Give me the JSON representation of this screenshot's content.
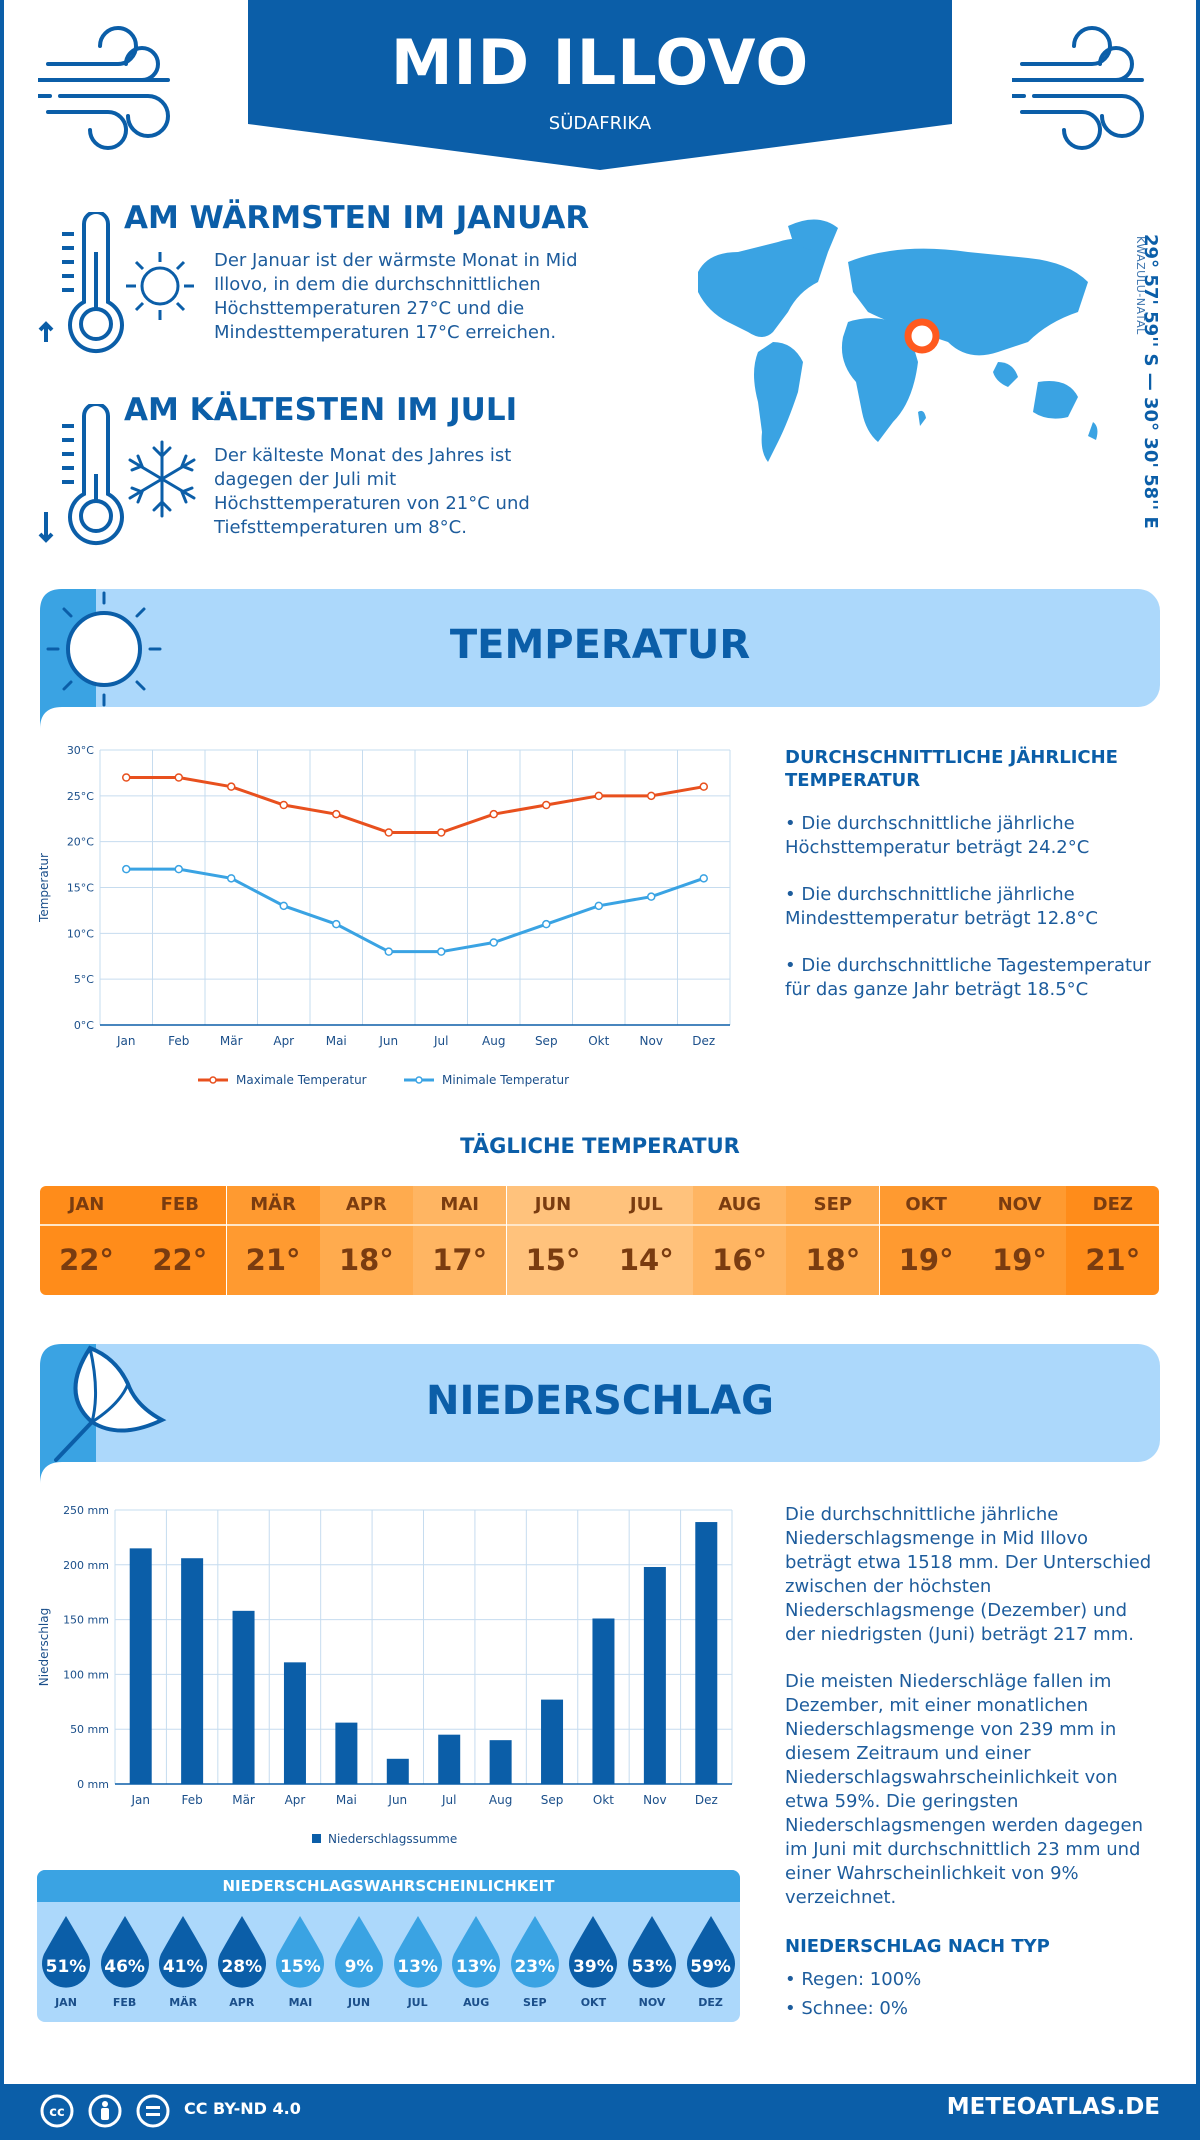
{
  "header": {
    "title": "MID ILLOVO",
    "subtitle": "SÜDAFRIKA"
  },
  "location": {
    "coordinates": "29° 57' 59'' S — 30° 30' 58'' E",
    "region": "KWAZULU-NATAL"
  },
  "warmest": {
    "title": "AM WÄRMSTEN IM JANUAR",
    "text": "Der Januar ist der wärmste Monat in Mid Illovo, in dem die durchschnittlichen Höchsttemperaturen 27°C und die Mindesttemperaturen 17°C erreichen."
  },
  "coldest": {
    "title": "AM KÄLTESTEN IM JULI",
    "text": "Der kälteste Monat des Jahres ist dagegen der Juli mit Höchsttemperaturen von 21°C und Tiefsttemperaturen um 8°C."
  },
  "temperature": {
    "section_title": "TEMPERATUR",
    "side_title": "DURCHSCHNITTLICHE JÄHRLICHE TEMPERATUR",
    "bullets": [
      "• Die durchschnittliche jährliche Höchsttemperatur beträgt 24.2°C",
      "• Die durchschnittliche jährliche Mindesttemperatur beträgt 12.8°C",
      "• Die durchschnittliche Tagestemperatur für das ganze Jahr beträgt 18.5°C"
    ]
  },
  "daily": {
    "title": "TÄGLICHE TEMPERATUR",
    "months": [
      "JAN",
      "FEB",
      "MÄR",
      "APR",
      "MAI",
      "JUN",
      "JUL",
      "AUG",
      "SEP",
      "OKT",
      "NOV",
      "DEZ"
    ],
    "values": [
      "22°",
      "22°",
      "21°",
      "18°",
      "17°",
      "15°",
      "14°",
      "16°",
      "18°",
      "19°",
      "19°",
      "21°"
    ],
    "colors_header": [
      "#ff8c1a",
      "#ff8c1a",
      "#ff9a30",
      "#ffab4e",
      "#ffb562",
      "#ffc27c",
      "#ffc27c",
      "#ffb562",
      "#ffab4e",
      "#ff9a30",
      "#ff9a30",
      "#ff8c1a"
    ],
    "colors_value": [
      "#ff8c1a",
      "#ff8c1a",
      "#ff9a30",
      "#ffab4e",
      "#ffb562",
      "#ffc27c",
      "#ffc27c",
      "#ffb562",
      "#ffab4e",
      "#ff9a30",
      "#ff9a30",
      "#ff8c1a"
    ]
  },
  "precip": {
    "section_title": "NIEDERSCHLAG",
    "text1": "Die durchschnittliche jährliche Niederschlagsmenge in Mid Illovo beträgt etwa 1518 mm. Der Unterschied zwischen der höchsten Niederschlagsmenge (Dezember) und der niedrigsten (Juni) beträgt 217 mm.",
    "text2": "Die meisten Niederschläge fallen im Dezember, mit einer monatlichen Niederschlagsmenge von 239 mm in diesem Zeitraum und einer Niederschlagswahrscheinlichkeit von etwa 59%. Die geringsten Niederschlagsmengen werden dagegen im Juni mit durchschnittlich 23 mm und einer Wahrscheinlichkeit von 9% verzeichnet.",
    "type_title": "NIEDERSCHLAG NACH TYP",
    "types": [
      "• Regen: 100%",
      "• Schnee: 0%"
    ]
  },
  "probability": {
    "title": "NIEDERSCHLAGSWAHRSCHEINLICHKEIT",
    "months": [
      "JAN",
      "FEB",
      "MÄR",
      "APR",
      "MAI",
      "JUN",
      "JUL",
      "AUG",
      "SEP",
      "OKT",
      "NOV",
      "DEZ"
    ],
    "values": [
      "51%",
      "46%",
      "41%",
      "28%",
      "15%",
      "9%",
      "13%",
      "13%",
      "23%",
      "39%",
      "53%",
      "59%"
    ],
    "colors": [
      "#0b5ea8",
      "#0b5ea8",
      "#0b5ea8",
      "#0b5ea8",
      "#3aa3e3",
      "#3aa3e3",
      "#3aa3e3",
      "#3aa3e3",
      "#3aa3e3",
      "#0b5ea8",
      "#0b5ea8",
      "#0b5ea8"
    ]
  },
  "footer": {
    "license": "CC BY-ND 4.0",
    "site": "METEOATLAS.DE"
  },
  "chart_data": [
    {
      "type": "line",
      "categories": [
        "Jan",
        "Feb",
        "Mär",
        "Apr",
        "Mai",
        "Jun",
        "Jul",
        "Aug",
        "Sep",
        "Okt",
        "Nov",
        "Dez"
      ],
      "series": [
        {
          "name": "Maximale Temperatur",
          "values": [
            27,
            27,
            26,
            24,
            23,
            21,
            21,
            23,
            24,
            25,
            25,
            26
          ],
          "color": "#e8501e"
        },
        {
          "name": "Minimale Temperatur",
          "values": [
            17,
            17,
            16,
            13,
            11,
            8,
            8,
            9,
            11,
            13,
            14,
            16
          ],
          "color": "#3aa3e3"
        }
      ],
      "ylabel": "Temperatur",
      "yticks": [
        "0°C",
        "5°C",
        "10°C",
        "15°C",
        "20°C",
        "25°C",
        "30°C"
      ],
      "ylim": [
        0,
        30
      ],
      "grid": true,
      "legend": "bottom"
    },
    {
      "type": "bar",
      "categories": [
        "Jan",
        "Feb",
        "Mär",
        "Apr",
        "Mai",
        "Jun",
        "Jul",
        "Aug",
        "Sep",
        "Okt",
        "Nov",
        "Dez"
      ],
      "series": [
        {
          "name": "Niederschlagssumme",
          "values": [
            215,
            206,
            158,
            111,
            56,
            23,
            45,
            40,
            77,
            151,
            198,
            239
          ],
          "color": "#0b5ea8"
        }
      ],
      "ylabel": "Niederschlag",
      "yticks": [
        "0 mm",
        "50 mm",
        "100 mm",
        "150 mm",
        "200 mm",
        "250 mm"
      ],
      "ylim": [
        0,
        250
      ],
      "grid": true,
      "legend": "bottom"
    }
  ]
}
